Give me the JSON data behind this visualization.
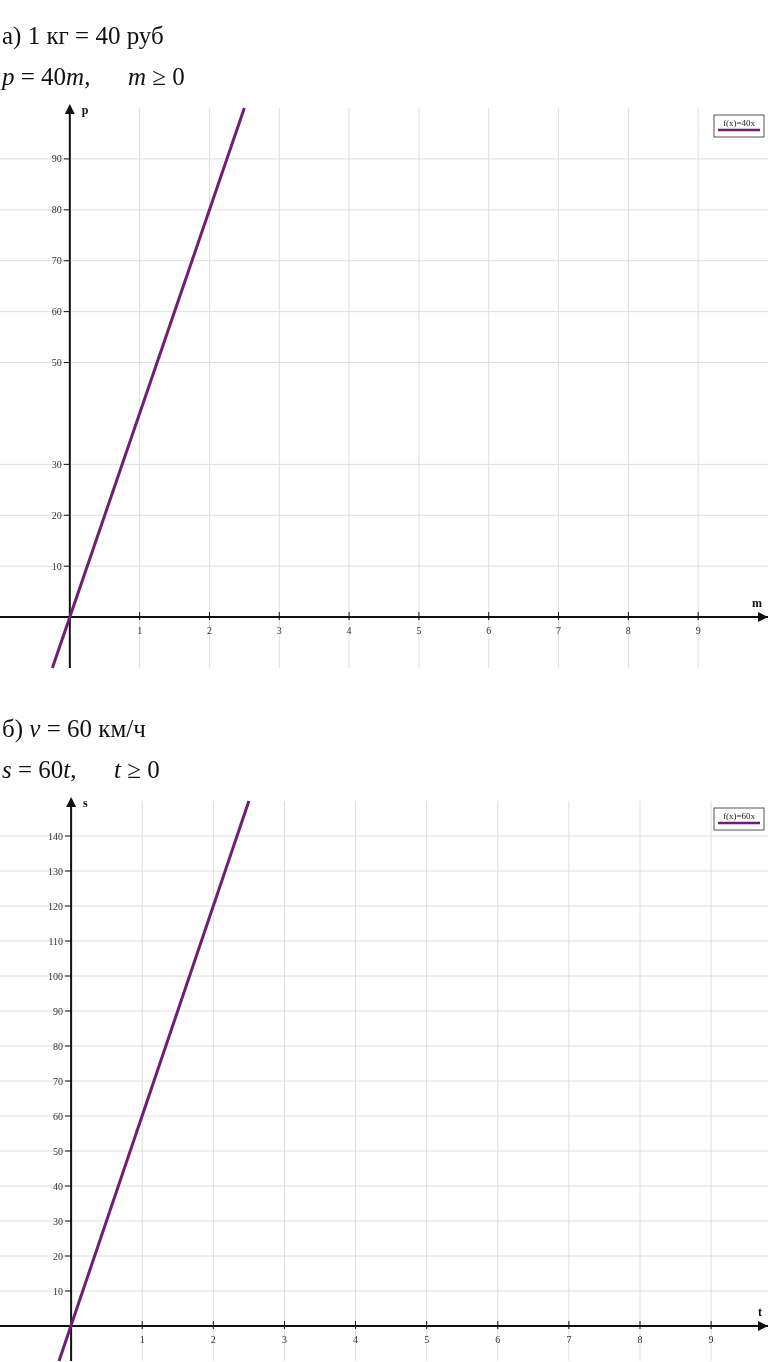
{
  "chart_data": [
    {
      "type": "line",
      "title": "а) 1 кг = 40 руб",
      "subtitle": "p = 40m,      m ≥ 0",
      "xlabel": "m",
      "ylabel": "p",
      "xlim": [
        -1,
        10
      ],
      "ylim": [
        -10,
        100
      ],
      "xticks": [
        1,
        2,
        3,
        4,
        5,
        6,
        7,
        8,
        9
      ],
      "yticks": [
        10,
        20,
        30,
        50,
        60,
        70,
        80,
        90
      ],
      "grid": true,
      "legend": "top right",
      "series": [
        {
          "name": "f(x)=40x",
          "color": "#6d1f72",
          "x": [
            -0.25,
            2.5
          ],
          "values": [
            -10,
            100
          ]
        }
      ]
    },
    {
      "type": "line",
      "title": "б) v = 60 км/ч",
      "subtitle": "s = 60t,      t ≥ 0",
      "xlabel": "t",
      "ylabel": "s",
      "xlim": [
        -1,
        9.8
      ],
      "ylim": [
        -10,
        150
      ],
      "xticks": [
        1,
        2,
        3,
        4,
        5,
        6,
        7,
        8,
        9
      ],
      "yticks": [
        10,
        20,
        30,
        40,
        50,
        60,
        70,
        80,
        90,
        100,
        110,
        120,
        130,
        140
      ],
      "grid": true,
      "legend": "top right",
      "series": [
        {
          "name": "f(x)=60x",
          "color": "#6d1f72",
          "x": [
            -0.17,
            2.5
          ],
          "values": [
            -10,
            150
          ]
        }
      ]
    }
  ]
}
